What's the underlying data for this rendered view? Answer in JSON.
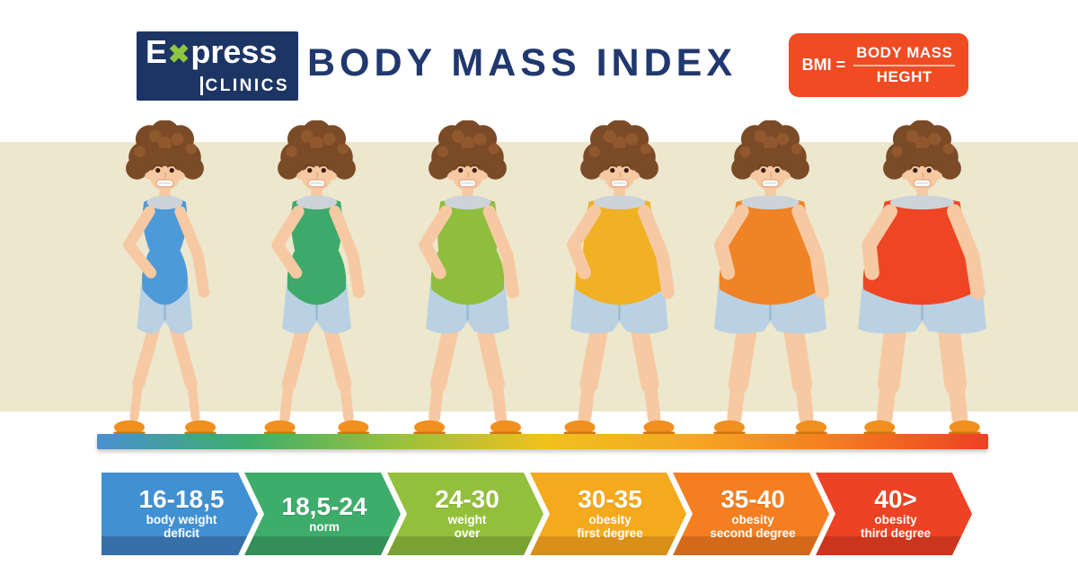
{
  "header": {
    "logo": {
      "word_prefix": "E",
      "x_symbol": "✖",
      "word_suffix": "press",
      "line2": "CLINICS"
    },
    "title": "BODY MASS INDEX",
    "formula": {
      "prefix": "BMI =",
      "numerator": "BODY MASS",
      "denominator": "HEGHT"
    }
  },
  "colors": {
    "logo_bg": "#1c3565",
    "logo_x": "#8dc63f",
    "title": "#20386e",
    "formula_bg": "#f04b22",
    "band": "#ece7cd",
    "bar_gradient": [
      "#4a90d0",
      "#3fae6c",
      "#94c13d",
      "#efc11e",
      "#f5a623",
      "#f47b20",
      "#ee4023"
    ],
    "skin": "#f7c9a2",
    "hair": "#7b4a27",
    "hair_light": "#945a2f",
    "shorts": "#b9d1e3",
    "shorts_seam": "#9db9cf",
    "shoes": "#f18f1f",
    "shoe_sole": "#d1770f",
    "collar": "#ccd3d9"
  },
  "figures": [
    {
      "name": "figure-underweight",
      "top_color": "#4e9ad9",
      "fatness": 0
    },
    {
      "name": "figure-norm",
      "top_color": "#3da96a",
      "fatness": 0.18
    },
    {
      "name": "figure-overweight",
      "top_color": "#8fbe3e",
      "fatness": 0.38
    },
    {
      "name": "figure-obesity-first",
      "top_color": "#f0b125",
      "fatness": 0.58
    },
    {
      "name": "figure-obesity-second",
      "top_color": "#ef8325",
      "fatness": 0.78
    },
    {
      "name": "figure-obesity-third",
      "top_color": "#ee4525",
      "fatness": 1
    }
  ],
  "segments": [
    {
      "range": "16-18,5",
      "label_line1": "body weight",
      "label_line2": "deficit",
      "color": "#4190d2",
      "dark": "#366fa9"
    },
    {
      "range": "18,5-24",
      "label_line1": "norm",
      "label_line2": "",
      "color": "#3eac6b",
      "dark": "#338e58"
    },
    {
      "range": "24-30",
      "label_line1": "weight",
      "label_line2": "over",
      "color": "#93c03c",
      "dark": "#7aa232"
    },
    {
      "range": "30-35",
      "label_line1": "obesity",
      "label_line2": "first degree",
      "color": "#f5a91d",
      "dark": "#d98f18"
    },
    {
      "range": "35-40",
      "label_line1": "obesity",
      "label_line2": "second degree",
      "color": "#f47e20",
      "dark": "#d3691a"
    },
    {
      "range": "40>",
      "label_line1": "obesity",
      "label_line2": "third degree",
      "color": "#ee4224",
      "dark": "#cc351d"
    }
  ]
}
